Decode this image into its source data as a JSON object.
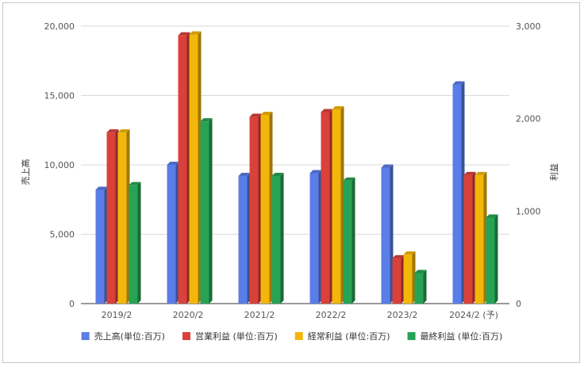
{
  "chart_data": {
    "type": "bar",
    "categories": [
      "2019/2",
      "2020/2",
      "2021/2",
      "2022/2",
      "2023/2",
      "2024/2 (予)"
    ],
    "series": [
      {
        "name": "売上高(単位:百万)",
        "axis": "left",
        "color": "#5b7de8",
        "values": [
          8200,
          10000,
          9200,
          9400,
          9800,
          15800
        ]
      },
      {
        "name": "営業利益 (単位:百万)",
        "axis": "right",
        "color": "#d9413a",
        "values": [
          1850,
          2900,
          2020,
          2070,
          490,
          1390
        ]
      },
      {
        "name": "経常利益 (単位:百万)",
        "axis": "right",
        "color": "#f2b70a",
        "values": [
          1850,
          2910,
          2040,
          2100,
          530,
          1390
        ]
      },
      {
        "name": "最終利益 (単位:百万)",
        "axis": "right",
        "color": "#27a355",
        "values": [
          1280,
          1970,
          1380,
          1330,
          330,
          930
        ]
      }
    ],
    "left_axis": {
      "label": "売上高",
      "ylim": [
        0,
        20000
      ],
      "ticks": [
        "0",
        "5,000",
        "10,000",
        "15,000",
        "20,000"
      ]
    },
    "right_axis": {
      "label": "利益",
      "ylim": [
        0,
        3000
      ],
      "ticks": [
        "0",
        "1,000",
        "2,000",
        "3,000"
      ]
    },
    "grid": true,
    "legend": "bottom"
  }
}
